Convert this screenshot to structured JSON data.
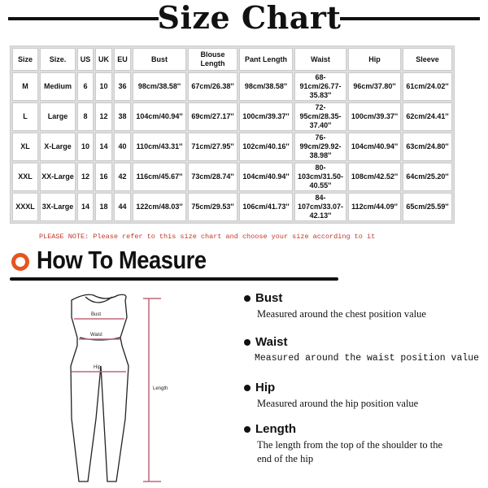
{
  "title": "Size Chart",
  "table": {
    "headers": [
      "Size",
      "Size.",
      "US",
      "UK",
      "EU",
      "Bust",
      "Blouse Length",
      "Pant Length",
      "Waist",
      "Hip",
      "Sleeve"
    ],
    "rows": [
      [
        "M",
        "Medium",
        "6",
        "10",
        "36",
        "98cm/38.58''",
        "67cm/26.38''",
        "98cm/38.58''",
        "68-91cm/26.77-35.83''",
        "96cm/37.80''",
        "61cm/24.02''"
      ],
      [
        "L",
        "Large",
        "8",
        "12",
        "38",
        "104cm/40.94''",
        "69cm/27.17''",
        "100cm/39.37''",
        "72-95cm/28.35-37.40''",
        "100cm/39.37''",
        "62cm/24.41''"
      ],
      [
        "XL",
        "X-Large",
        "10",
        "14",
        "40",
        "110cm/43.31''",
        "71cm/27.95''",
        "102cm/40.16''",
        "76-99cm/29.92-38.98''",
        "104cm/40.94''",
        "63cm/24.80''"
      ],
      [
        "XXL",
        "XX-Large",
        "12",
        "16",
        "42",
        "116cm/45.67''",
        "73cm/28.74''",
        "104cm/40.94''",
        "80-103cm/31.50-40.55''",
        "108cm/42.52''",
        "64cm/25.20''"
      ],
      [
        "XXXL",
        "3X-Large",
        "14",
        "18",
        "44",
        "122cm/48.03''",
        "75cm/29.53''",
        "106cm/41.73''",
        "84-107cm/33.07-42.13''",
        "112cm/44.09''",
        "65cm/25.59''"
      ]
    ]
  },
  "note": "PLEASE NOTE: Please refer to this size chart and choose your size according to it",
  "how_to": {
    "title": "How To Measure",
    "accent": "#e8541f",
    "figure_labels": {
      "bust": "Bust",
      "waist": "Waist",
      "hip": "Hip",
      "length": "Length"
    },
    "items": [
      {
        "name": "Bust",
        "desc": "Measured around the chest position value"
      },
      {
        "name": "Waist",
        "desc": "Measured around the waist position value"
      },
      {
        "name": "Hip",
        "desc": "Measured around the  hip position value"
      },
      {
        "name": "Length",
        "desc": "The length from the top of the shoulder to the end of the hip"
      }
    ]
  }
}
